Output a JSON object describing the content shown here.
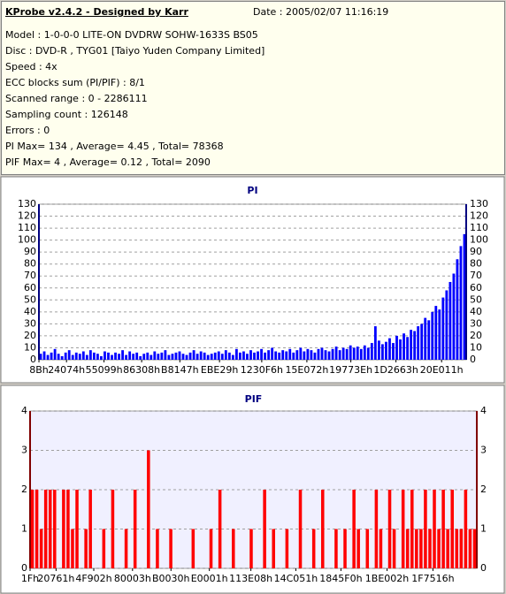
{
  "header": {
    "title": "KProbe v2.4.2 - Designed by Karr",
    "date": "Date : 2005/02/07 11:16:19",
    "lines": [
      "Model : 1-0-0-0 LITE-ON DVDRW SOHW-1633S BS05",
      "Disc : DVD-R , TYG01 [Taiyo Yuden Company Limited]",
      "Speed : 4x",
      "ECC blocks sum (PI/PIF) : 8/1",
      "Scanned range : 0 - 2286111",
      "Sampling count : 126148",
      "Errors : 0",
      "PI Max= 134 , Average= 4.45 , Total= 78368",
      "PIF Max= 4 , Average= 0.12 , Total= 2090"
    ]
  },
  "chart_data": [
    {
      "type": "bar",
      "title": "PI",
      "color": "#0000ff",
      "background": "#ffffff",
      "grid": true,
      "xlim": [
        0,
        2286111
      ],
      "ylim": [
        0,
        130
      ],
      "yticks": [
        0,
        10,
        20,
        30,
        40,
        50,
        60,
        70,
        80,
        90,
        100,
        110,
        120,
        130
      ],
      "xticks": [
        {
          "value": 139,
          "label": "8Bh"
        },
        {
          "value": 147572,
          "label": "24074h"
        },
        {
          "value": 348313,
          "label": "55099h"
        },
        {
          "value": 549640,
          "label": "86308h"
        },
        {
          "value": 753991,
          "label": "B8147h"
        },
        {
          "value": 966185,
          "label": "EBE29h"
        },
        {
          "value": 1192182,
          "label": "1230F6h"
        },
        {
          "value": 1433714,
          "label": "15E072h"
        },
        {
          "value": 1668926,
          "label": "19773Eh"
        },
        {
          "value": 1910371,
          "label": "1D2663h"
        },
        {
          "value": 2154513,
          "label": "20E011h"
        }
      ],
      "values": [
        5,
        7,
        4,
        6,
        9,
        5,
        3,
        6,
        8,
        4,
        6,
        5,
        7,
        4,
        8,
        6,
        5,
        3,
        7,
        6,
        4,
        6,
        5,
        8,
        4,
        7,
        5,
        6,
        3,
        5,
        6,
        4,
        7,
        5,
        6,
        8,
        4,
        5,
        6,
        7,
        5,
        4,
        6,
        8,
        5,
        7,
        6,
        4,
        5,
        6,
        7,
        5,
        8,
        6,
        4,
        9,
        6,
        7,
        5,
        8,
        6,
        7,
        9,
        6,
        8,
        10,
        7,
        6,
        8,
        7,
        9,
        6,
        8,
        10,
        7,
        9,
        8,
        6,
        9,
        10,
        8,
        7,
        9,
        11,
        8,
        10,
        9,
        12,
        10,
        11,
        9,
        12,
        10,
        14,
        28,
        16,
        13,
        15,
        18,
        14,
        20,
        17,
        22,
        19,
        25,
        24,
        28,
        30,
        35,
        33,
        40,
        45,
        42,
        52,
        58,
        65,
        72,
        84,
        95,
        105
      ]
    },
    {
      "type": "bar",
      "title": "PIF",
      "color": "#ff0000",
      "background": "#f0f0ff",
      "grid": true,
      "xlim": [
        0,
        2286111
      ],
      "ylim": [
        0,
        4
      ],
      "yticks": [
        0,
        1,
        2,
        3,
        4
      ],
      "xticks": [
        {
          "value": 31,
          "label": "1Fh"
        },
        {
          "value": 132961,
          "label": "20761h"
        },
        {
          "value": 325890,
          "label": "4F902h"
        },
        {
          "value": 524291,
          "label": "80003h"
        },
        {
          "value": 720944,
          "label": "B0030h"
        },
        {
          "value": 917505,
          "label": "E0001h"
        },
        {
          "value": 1129992,
          "label": "113E08h"
        },
        {
          "value": 1359953,
          "label": "14C051h"
        },
        {
          "value": 1590768,
          "label": "1845F0h"
        },
        {
          "value": 1826818,
          "label": "1BE002h"
        },
        {
          "value": 2061590,
          "label": "1F7516h"
        }
      ],
      "values": [
        2,
        2,
        1,
        2,
        2,
        2,
        0,
        2,
        2,
        1,
        2,
        0,
        1,
        2,
        0,
        0,
        1,
        0,
        2,
        0,
        0,
        1,
        0,
        2,
        0,
        0,
        3,
        0,
        1,
        0,
        0,
        1,
        0,
        0,
        0,
        0,
        1,
        0,
        0,
        0,
        1,
        0,
        2,
        0,
        0,
        1,
        0,
        0,
        0,
        1,
        0,
        0,
        2,
        0,
        1,
        0,
        0,
        1,
        0,
        0,
        2,
        0,
        0,
        1,
        0,
        2,
        0,
        0,
        1,
        0,
        1,
        0,
        2,
        1,
        0,
        1,
        0,
        2,
        1,
        0,
        2,
        1,
        0,
        2,
        1,
        2,
        1,
        1,
        2,
        1,
        2,
        1,
        2,
        1,
        2,
        1,
        1,
        2,
        1,
        1
      ]
    }
  ]
}
